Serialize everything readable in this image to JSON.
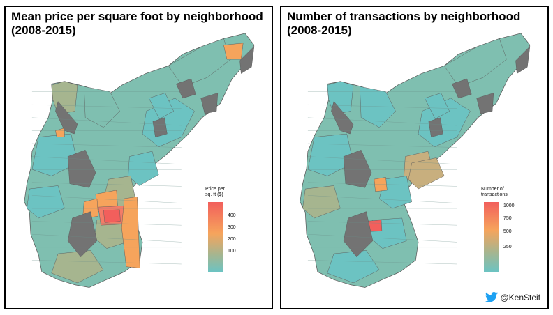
{
  "colors": {
    "teal": "#6CC3C2",
    "tealmid": "#7FBFB0",
    "sage": "#A6B58F",
    "tan": "#C8AF7E",
    "orange": "#F6A45C",
    "salmon": "#F47C67",
    "red": "#F25F5C",
    "nodata": "#737373",
    "twitter": "#1DA1F2"
  },
  "panels": [
    {
      "title": "Mean price per square foot by neighborhood\n(2008-2015)",
      "legend": {
        "title": "Price per\nsq. ft ($)",
        "ticks": [
          "400",
          "300",
          "200",
          "100"
        ],
        "tick_values": [
          400,
          300,
          200,
          100
        ],
        "min": 40,
        "max": 460
      }
    },
    {
      "title": "Number of transactions by neighborhood\n(2008-2015)",
      "legend": {
        "title": "Number of\ntransactions",
        "ticks": [
          "1000",
          "750",
          "500",
          "250"
        ],
        "tick_values": [
          1000,
          750,
          500,
          250
        ],
        "min": 80,
        "max": 1080
      }
    }
  ],
  "credit": {
    "handle": "@KenSteif",
    "icon": "twitter-bird-icon"
  }
}
